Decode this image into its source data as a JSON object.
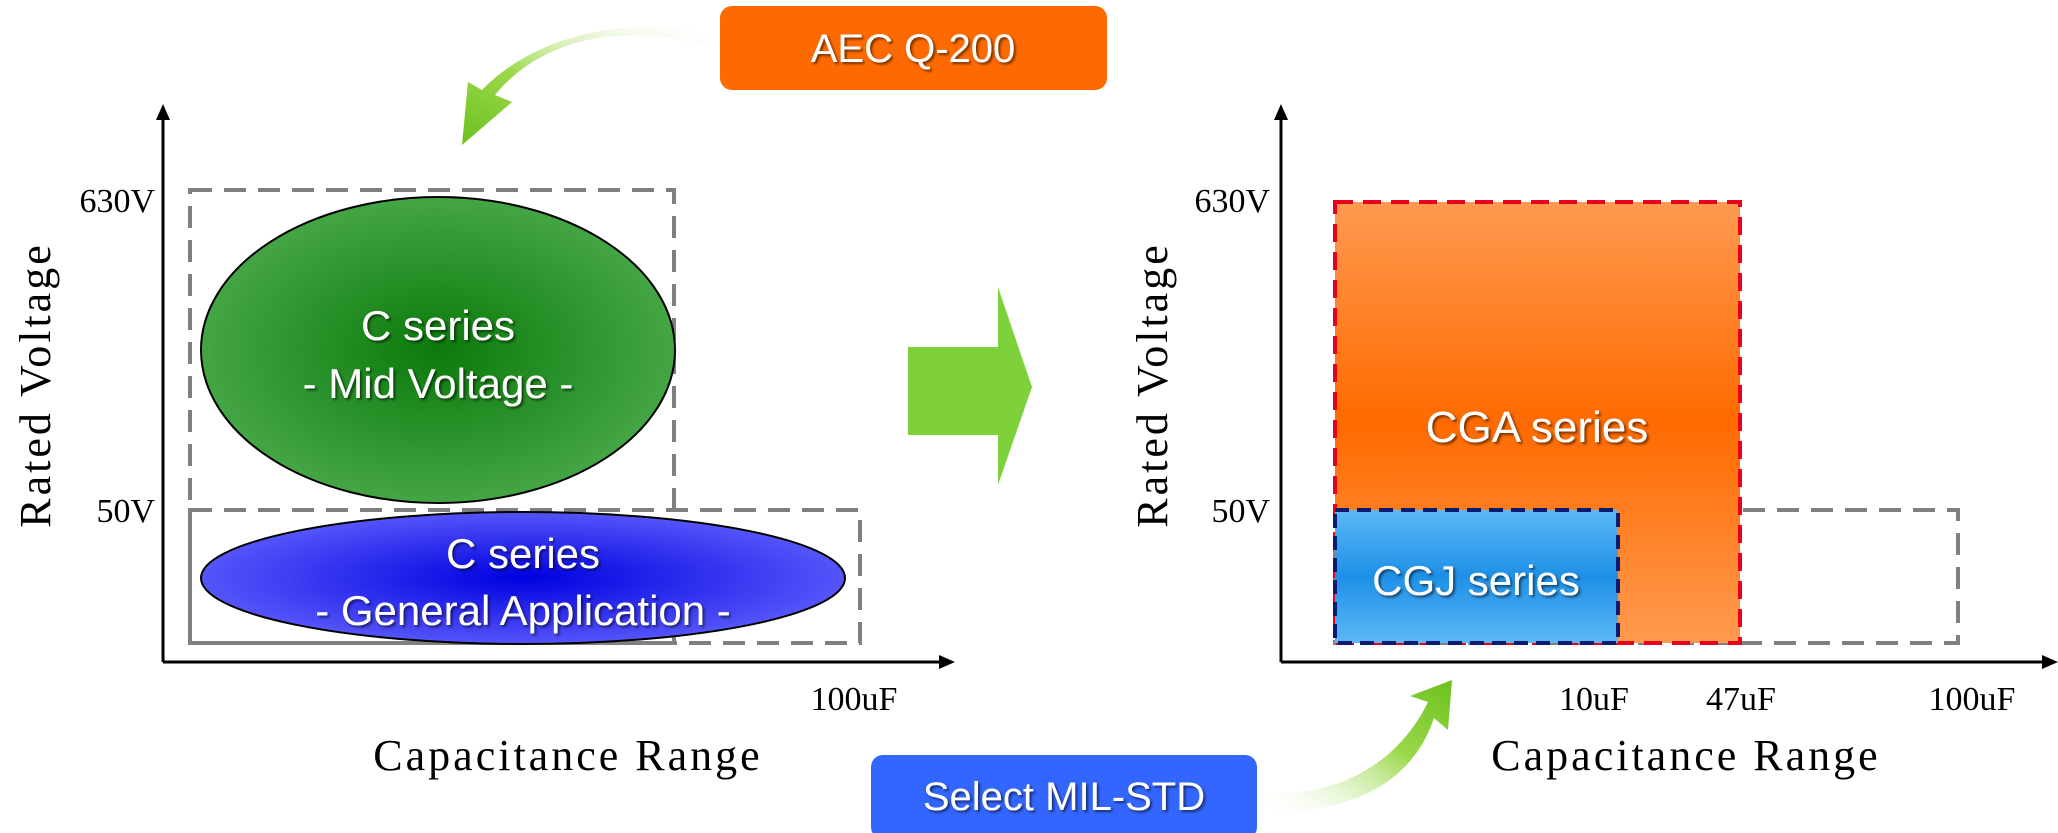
{
  "badges": {
    "aec": "AEC Q-200",
    "mil": "Select MIL-STD"
  },
  "left_chart": {
    "y_axis_label": "Rated Voltage",
    "x_axis_label": "Capacitance Range",
    "y_ticks": [
      "630V",
      "50V"
    ],
    "x_ticks": [
      "100uF"
    ],
    "regions": [
      {
        "line1": "C series",
        "line2": "- Mid Voltage -"
      },
      {
        "line1": "C series",
        "line2": "- General Application -"
      }
    ]
  },
  "right_chart": {
    "y_axis_label": "Rated Voltage",
    "x_axis_label": "Capacitance Range",
    "y_ticks": [
      "630V",
      "50V"
    ],
    "x_ticks": [
      "10uF",
      "47uF",
      "100uF"
    ],
    "regions": [
      {
        "label": "CGA series"
      },
      {
        "label": "CGJ series"
      }
    ]
  },
  "colors": {
    "badge_orange": "#FF6A00",
    "badge_blue": "#3366FF",
    "mid_voltage_green": "#1E8A1E",
    "general_blue": "#2222EE",
    "cga_orange": "#FF7A1A",
    "cgj_blue": "#2FA0F0",
    "arrow_green": "#7FD13B"
  }
}
